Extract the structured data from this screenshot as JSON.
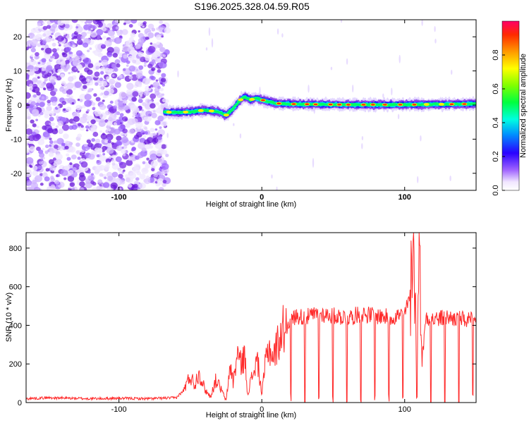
{
  "title": "S196.2025.328.04.59.R05",
  "chart_data": [
    {
      "type": "heatmap",
      "name": "spectrogram",
      "xlabel": "Height of straight line (km)",
      "ylabel": "Frequency (Hz)",
      "xlim": [
        -165,
        150
      ],
      "ylim": [
        -25,
        25
      ],
      "x_ticks": [
        -100,
        0,
        100
      ],
      "x_tick_labels": [
        "-100",
        "0",
        "100"
      ],
      "y_ticks": [
        20,
        10,
        0,
        -10,
        -20
      ],
      "y_tick_labels": [
        "20",
        "10",
        "0",
        "-10",
        "-20"
      ],
      "colorbar": {
        "label": "Normalized spectral amplitude",
        "range": [
          0,
          1
        ],
        "ticks": [
          0.0,
          0.2,
          0.4,
          0.6,
          0.8
        ],
        "tick_labels": [
          "0.0",
          "0.2",
          "0.4",
          "0.6",
          "0.8"
        ]
      },
      "noise_region_x": [
        -165,
        -68
      ],
      "signal_trace": {
        "x": [
          -68,
          -60,
          -50,
          -40,
          -30,
          -25,
          -20,
          -15,
          -12,
          -8,
          -4,
          0,
          10,
          20,
          40,
          60,
          80,
          100,
          120,
          145
        ],
        "frequency_hz": [
          -2,
          -2.2,
          -2,
          -1.5,
          -2,
          -3,
          -1,
          1.5,
          2.5,
          1.5,
          2,
          1.5,
          0.5,
          0.3,
          0.2,
          0.1,
          0.1,
          0.1,
          0.2,
          0.3
        ]
      },
      "color_scale": [
        "#ffffff",
        "#e6d9ff",
        "#b58bff",
        "#7b2ee6",
        "#1a1aff",
        "#00ffff",
        "#00ff00",
        "#ffff00",
        "#ff8800",
        "#ff0000"
      ]
    },
    {
      "type": "line",
      "name": "snr",
      "xlabel": "Height of straight line (km)",
      "ylabel": "SNR (10 * v/v)",
      "xlim": [
        -165,
        150
      ],
      "ylim": [
        0,
        880
      ],
      "x_ticks": [
        -100,
        0,
        100
      ],
      "x_tick_labels": [
        "-100",
        "0",
        "100"
      ],
      "y_ticks": [
        0,
        200,
        400,
        600,
        800
      ],
      "y_tick_labels": [
        "0",
        "200",
        "400",
        "600",
        "800"
      ],
      "series": [
        {
          "name": "SNR",
          "color": "#ff2a2a",
          "x": [
            -165,
            -150,
            -120,
            -100,
            -80,
            -60,
            -55,
            -50,
            -47,
            -44,
            -40,
            -36,
            -32,
            -28,
            -25,
            -22,
            -20,
            -17,
            -15,
            -12,
            -10,
            -8,
            -5,
            -3,
            0,
            3,
            5,
            8,
            10,
            12,
            15,
            18,
            20,
            25,
            30,
            40,
            50,
            60,
            70,
            80,
            90,
            100,
            104,
            106,
            108,
            110,
            112,
            115,
            120,
            130,
            140,
            150
          ],
          "values": [
            20,
            25,
            20,
            22,
            20,
            25,
            60,
            140,
            90,
            160,
            70,
            30,
            120,
            60,
            10,
            200,
            100,
            260,
            200,
            240,
            50,
            100,
            180,
            220,
            40,
            230,
            290,
            230,
            280,
            330,
            380,
            420,
            430,
            450,
            440,
            460,
            450,
            440,
            460,
            450,
            440,
            460,
            550,
            860,
            300,
            880,
            200,
            450,
            430,
            440,
            430,
            420
          ]
        }
      ]
    }
  ]
}
